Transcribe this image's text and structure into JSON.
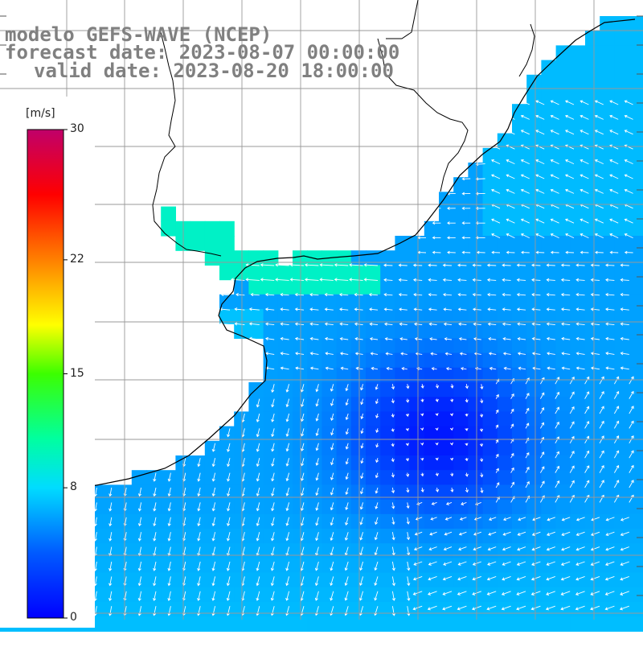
{
  "header": {
    "line1": "modelo GEFS-WAVE (NCEP)",
    "line2": "forecast date: 2023-08-07 00:00:00",
    "line3": "valid date: 2023-08-20 18:00:00"
  },
  "colorbar": {
    "units": "[m/s]",
    "ticks": [
      "30",
      "22",
      "15",
      "8",
      "0"
    ],
    "tick_values": [
      30,
      22,
      15,
      8,
      0
    ],
    "range": [
      0,
      30
    ],
    "colors": [
      "#0000ff",
      "#0a8cff",
      "#00e5ff",
      "#00ff80",
      "#40ff00",
      "#ffff00",
      "#ff8000",
      "#ff0000",
      "#c0006a"
    ]
  },
  "colors": {
    "land": "#ffffff",
    "coastline": "#000000",
    "grid": "#999999",
    "arrow": "#ffffff",
    "title": "#808080"
  }
}
